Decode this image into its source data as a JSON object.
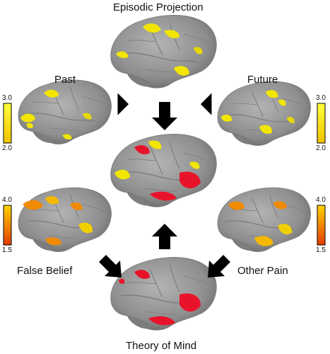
{
  "figure": {
    "labels": {
      "top": "Episodic Projection",
      "past": "Past",
      "future": "Future",
      "false_belief": "False Belief",
      "other_pain": "Other Pain",
      "bottom": "Theory of Mind"
    },
    "colorbars": {
      "upper_left": {
        "max": "3.0",
        "min": "2.0"
      },
      "upper_right": {
        "max": "3.0",
        "min": "2.0"
      },
      "lower_left": {
        "max": "4.0",
        "min": "1.5"
      },
      "lower_right": {
        "max": "4.0",
        "min": "1.5"
      }
    },
    "colors": {
      "brain": "#9a9a9a",
      "brain_shade": "#6f6f6f",
      "yellow": "#f2e600",
      "orange": "#f08a00",
      "red": "#e8132a",
      "arrow": "#000000",
      "cbar_yellow_top": "#ffff3a",
      "cbar_yellow_bottom": "#f2c300",
      "cbar_orange_top": "#ffd200",
      "cbar_orange_bottom": "#e33c00"
    }
  }
}
